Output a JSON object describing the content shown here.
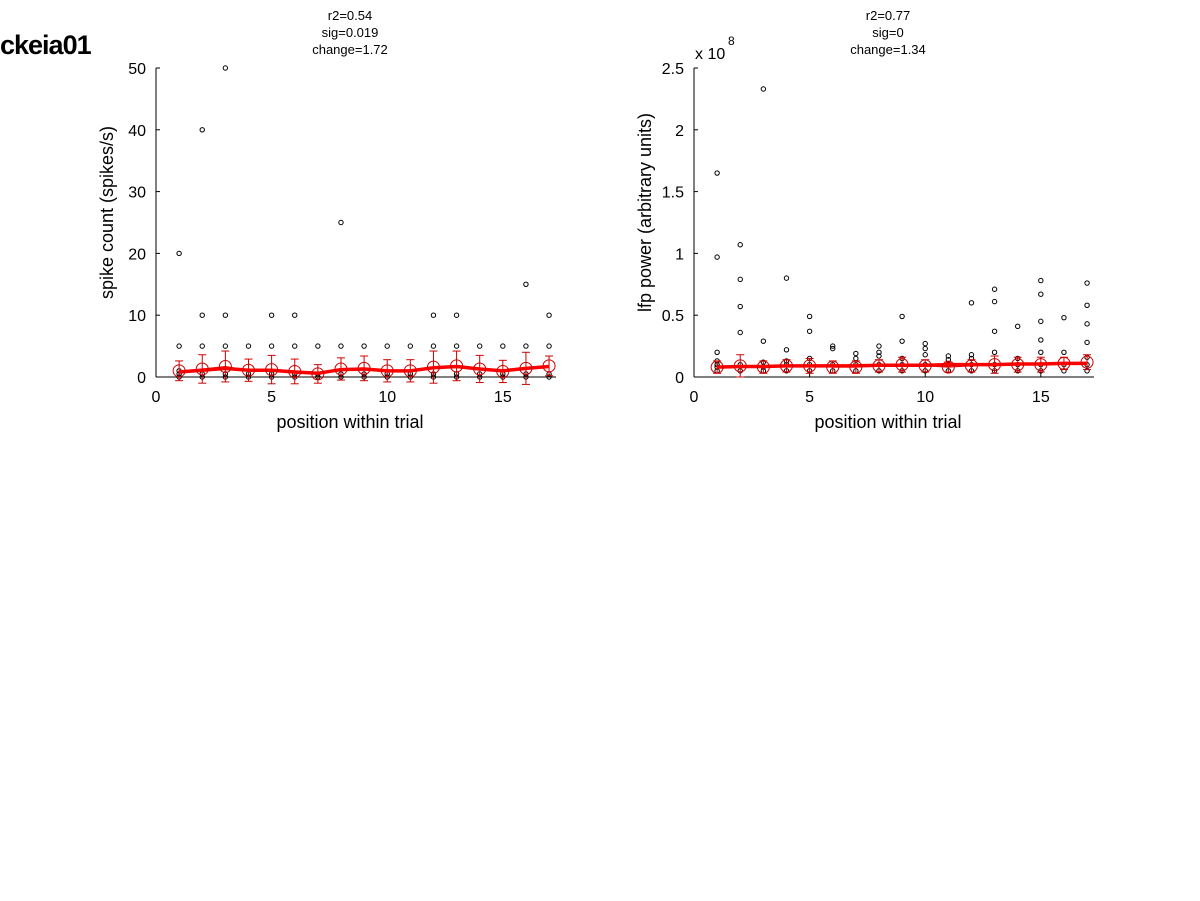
{
  "title": "ckeia01",
  "colors": {
    "axis": "#000000",
    "points": "#000000",
    "mean": "#cc0000",
    "fit": "#ff0000"
  },
  "chart_data": [
    {
      "type": "scatter",
      "stats": [
        "r2=0.54",
        "sig=0.019",
        "change=1.72"
      ],
      "xlabel": "position within trial",
      "ylabel": "spike count (spikes/s)",
      "xlim": [
        0,
        17.3
      ],
      "ylim": [
        0,
        50
      ],
      "xticks": [
        0,
        5,
        10,
        15
      ],
      "xtick_labels": [
        "0",
        "5",
        "10",
        "15"
      ],
      "yticks": [
        0,
        10,
        20,
        30,
        40,
        50
      ],
      "ytick_labels": [
        "0",
        "10",
        "20",
        "30",
        "40",
        "50"
      ],
      "exponent_label": "",
      "exponent_power": "",
      "points": [
        [
          1,
          0
        ],
        [
          1,
          0.5
        ],
        [
          1,
          1
        ],
        [
          1,
          5
        ],
        [
          1,
          20
        ],
        [
          2,
          0
        ],
        [
          2,
          0.5
        ],
        [
          2,
          5
        ],
        [
          2,
          10
        ],
        [
          2,
          40
        ],
        [
          3,
          0
        ],
        [
          3,
          0.5
        ],
        [
          3,
          5
        ],
        [
          3,
          10
        ],
        [
          3,
          50
        ],
        [
          4,
          0
        ],
        [
          4,
          0.5
        ],
        [
          4,
          5
        ],
        [
          5,
          0
        ],
        [
          5,
          0.5
        ],
        [
          5,
          5
        ],
        [
          5,
          10
        ],
        [
          6,
          0
        ],
        [
          6,
          0.5
        ],
        [
          6,
          5
        ],
        [
          6,
          10
        ],
        [
          7,
          0
        ],
        [
          7,
          0.5
        ],
        [
          7,
          5
        ],
        [
          8,
          0
        ],
        [
          8,
          0.5
        ],
        [
          8,
          5
        ],
        [
          8,
          25
        ],
        [
          9,
          0
        ],
        [
          9,
          0.5
        ],
        [
          9,
          5
        ],
        [
          10,
          0
        ],
        [
          10,
          0.5
        ],
        [
          10,
          5
        ],
        [
          11,
          0
        ],
        [
          11,
          0.5
        ],
        [
          11,
          5
        ],
        [
          12,
          0
        ],
        [
          12,
          0.5
        ],
        [
          12,
          5
        ],
        [
          12,
          10
        ],
        [
          13,
          0
        ],
        [
          13,
          0.5
        ],
        [
          13,
          5
        ],
        [
          13,
          10
        ],
        [
          14,
          0
        ],
        [
          14,
          0.5
        ],
        [
          14,
          5
        ],
        [
          15,
          0
        ],
        [
          15,
          0.5
        ],
        [
          15,
          5
        ],
        [
          16,
          0
        ],
        [
          16,
          0.5
        ],
        [
          16,
          5
        ],
        [
          16,
          15
        ],
        [
          17,
          0
        ],
        [
          17,
          0.5
        ],
        [
          17,
          5
        ],
        [
          17,
          10
        ]
      ],
      "means": [
        1.0,
        1.3,
        1.7,
        1.1,
        1.2,
        0.9,
        0.5,
        1.3,
        1.4,
        1.0,
        1.0,
        1.6,
        1.8,
        1.3,
        0.9,
        1.4,
        1.8
      ],
      "errors": [
        1.6,
        2.3,
        2.5,
        1.8,
        2.3,
        2.0,
        1.5,
        1.8,
        2.0,
        1.8,
        1.8,
        2.6,
        2.4,
        2.2,
        1.8,
        2.6,
        1.6
      ],
      "fit": [
        0.8,
        1.1,
        1.4,
        1.1,
        1.1,
        0.8,
        0.6,
        1.2,
        1.3,
        1.0,
        1.0,
        1.5,
        1.7,
        1.3,
        1.0,
        1.4,
        1.7
      ]
    },
    {
      "type": "scatter",
      "stats": [
        "r2=0.77",
        "sig=0",
        "change=1.34"
      ],
      "xlabel": "position within trial",
      "ylabel": "lfp power (arbitrary units)",
      "xlim": [
        0,
        17.3
      ],
      "ylim": [
        0,
        2.5
      ],
      "xticks": [
        0,
        5,
        10,
        15
      ],
      "xtick_labels": [
        "0",
        "5",
        "10",
        "15"
      ],
      "yticks": [
        0,
        0.5,
        1,
        1.5,
        2,
        2.5
      ],
      "ytick_labels": [
        "0",
        "0.5",
        "1",
        "1.5",
        "2",
        "2.5"
      ],
      "exponent_label": "x 10",
      "exponent_power": "8",
      "points": [
        [
          1,
          0.05
        ],
        [
          1,
          0.08
        ],
        [
          1,
          0.1
        ],
        [
          1,
          0.13
        ],
        [
          1,
          0.2
        ],
        [
          1,
          0.97
        ],
        [
          1,
          1.65
        ],
        [
          2,
          0.05
        ],
        [
          2,
          0.1
        ],
        [
          2,
          0.36
        ],
        [
          2,
          0.57
        ],
        [
          2,
          0.79
        ],
        [
          2,
          1.07
        ],
        [
          3,
          0.05
        ],
        [
          3,
          0.08
        ],
        [
          3,
          0.12
        ],
        [
          3,
          0.29
        ],
        [
          3,
          2.33
        ],
        [
          4,
          0.05
        ],
        [
          4,
          0.1
        ],
        [
          4,
          0.13
        ],
        [
          4,
          0.22
        ],
        [
          4,
          0.8
        ],
        [
          5,
          0.05
        ],
        [
          5,
          0.1
        ],
        [
          5,
          0.15
        ],
        [
          5,
          0.37
        ],
        [
          5,
          0.49
        ],
        [
          6,
          0.05
        ],
        [
          6,
          0.1
        ],
        [
          6,
          0.23
        ],
        [
          6,
          0.25
        ],
        [
          7,
          0.05
        ],
        [
          7,
          0.1
        ],
        [
          7,
          0.15
        ],
        [
          7,
          0.19
        ],
        [
          8,
          0.05
        ],
        [
          8,
          0.1
        ],
        [
          8,
          0.17
        ],
        [
          8,
          0.2
        ],
        [
          8,
          0.25
        ],
        [
          9,
          0.05
        ],
        [
          9,
          0.1
        ],
        [
          9,
          0.15
        ],
        [
          9,
          0.29
        ],
        [
          9,
          0.49
        ],
        [
          10,
          0.05
        ],
        [
          10,
          0.1
        ],
        [
          10,
          0.18
        ],
        [
          10,
          0.23
        ],
        [
          10,
          0.27
        ],
        [
          11,
          0.05
        ],
        [
          11,
          0.1
        ],
        [
          11,
          0.14
        ],
        [
          11,
          0.17
        ],
        [
          12,
          0.05
        ],
        [
          12,
          0.1
        ],
        [
          12,
          0.15
        ],
        [
          12,
          0.18
        ],
        [
          12,
          0.6
        ],
        [
          13,
          0.05
        ],
        [
          13,
          0.1
        ],
        [
          13,
          0.2
        ],
        [
          13,
          0.37
        ],
        [
          13,
          0.61
        ],
        [
          13,
          0.71
        ],
        [
          14,
          0.05
        ],
        [
          14,
          0.1
        ],
        [
          14,
          0.15
        ],
        [
          14,
          0.41
        ],
        [
          15,
          0.05
        ],
        [
          15,
          0.1
        ],
        [
          15,
          0.2
        ],
        [
          15,
          0.3
        ],
        [
          15,
          0.45
        ],
        [
          15,
          0.67
        ],
        [
          15,
          0.78
        ],
        [
          16,
          0.05
        ],
        [
          16,
          0.1
        ],
        [
          16,
          0.2
        ],
        [
          16,
          0.48
        ],
        [
          17,
          0.05
        ],
        [
          17,
          0.1
        ],
        [
          17,
          0.16
        ],
        [
          17,
          0.28
        ],
        [
          17,
          0.43
        ],
        [
          17,
          0.58
        ],
        [
          17,
          0.76
        ]
      ],
      "means": [
        0.08,
        0.09,
        0.08,
        0.09,
        0.09,
        0.08,
        0.08,
        0.09,
        0.1,
        0.09,
        0.08,
        0.09,
        0.1,
        0.1,
        0.1,
        0.11,
        0.12
      ],
      "errors": [
        0.05,
        0.09,
        0.05,
        0.05,
        0.06,
        0.05,
        0.05,
        0.05,
        0.06,
        0.05,
        0.04,
        0.05,
        0.07,
        0.06,
        0.06,
        0.05,
        0.06
      ],
      "fit": [
        0.08,
        0.085,
        0.085,
        0.09,
        0.09,
        0.09,
        0.09,
        0.095,
        0.095,
        0.095,
        0.1,
        0.1,
        0.1,
        0.105,
        0.105,
        0.11,
        0.11
      ]
    }
  ]
}
